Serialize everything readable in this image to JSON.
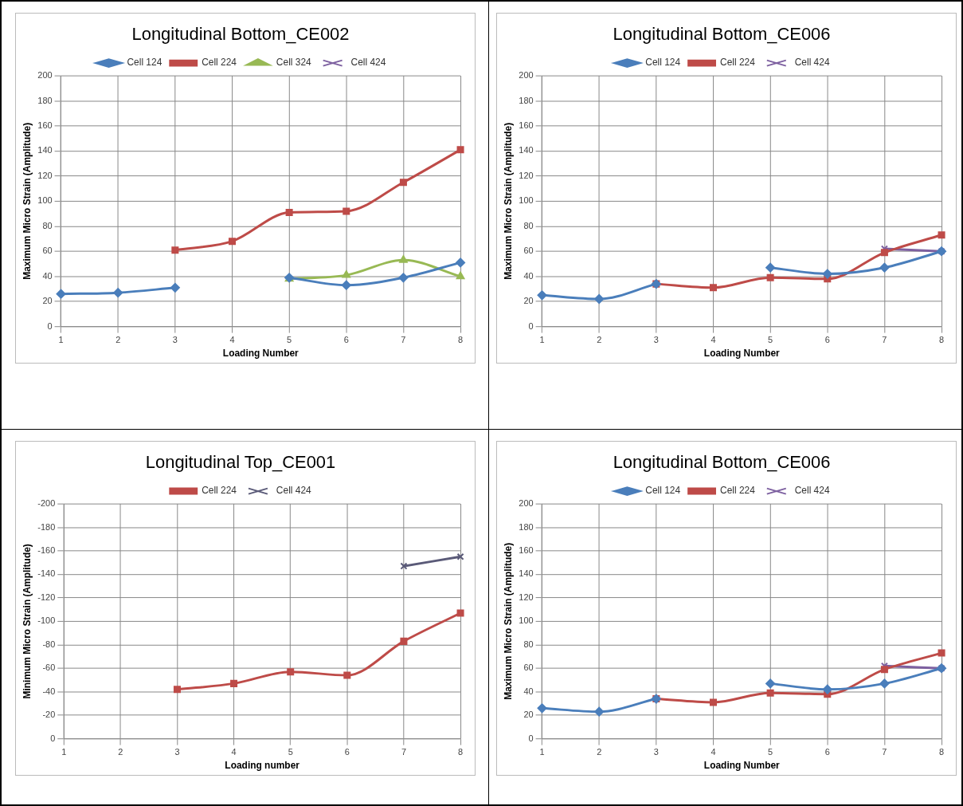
{
  "chart_data": [
    {
      "type": "line",
      "title": "Longitudinal Bottom_CE002",
      "xlabel": "Loading Number",
      "ylabel": "Maximum Micro Strain (Amplitude)",
      "categories": [
        "1",
        "2",
        "3",
        "4",
        "5",
        "6",
        "7",
        "8"
      ],
      "ylim": [
        0,
        200
      ],
      "yticks": [
        0,
        20,
        40,
        60,
        80,
        100,
        120,
        140,
        160,
        180,
        200
      ],
      "grid": true,
      "legend": "top",
      "series": [
        {
          "name": "Cell 124",
          "color": "#4a7ebb",
          "marker": "diamond",
          "values": [
            26,
            27,
            31,
            null,
            39,
            33,
            39,
            51
          ]
        },
        {
          "name": "Cell 224",
          "color": "#be4b48",
          "marker": "square",
          "values": [
            null,
            null,
            61,
            68,
            91,
            92,
            115,
            141
          ]
        },
        {
          "name": "Cell 324",
          "color": "#98b954",
          "marker": "triangle",
          "values": [
            null,
            null,
            null,
            null,
            38,
            41,
            53,
            40
          ]
        },
        {
          "name": "Cell 424",
          "color": "#7d60a0",
          "marker": "cross",
          "values": [
            null,
            null,
            null,
            null,
            null,
            null,
            null,
            null
          ]
        }
      ]
    },
    {
      "type": "line",
      "title": "Longitudinal Bottom_CE006",
      "xlabel": "Loading Number",
      "ylabel": "Maximum Micro Strain (Amplitude)",
      "categories": [
        "1",
        "2",
        "3",
        "4",
        "5",
        "6",
        "7",
        "8"
      ],
      "ylim": [
        0,
        200
      ],
      "yticks": [
        0,
        20,
        40,
        60,
        80,
        100,
        120,
        140,
        160,
        180,
        200
      ],
      "grid": true,
      "legend": "top",
      "series": [
        {
          "name": "Cell 124",
          "color": "#4a7ebb",
          "marker": "diamond",
          "values": [
            25,
            22,
            34,
            null,
            47,
            42,
            47,
            60
          ]
        },
        {
          "name": "Cell 224",
          "color": "#be4b48",
          "marker": "square",
          "values": [
            null,
            null,
            34,
            31,
            39,
            38,
            59,
            73
          ]
        },
        {
          "name": "Cell 424",
          "color": "#7d60a0",
          "marker": "cross",
          "values": [
            null,
            null,
            null,
            null,
            null,
            null,
            62,
            60
          ]
        }
      ]
    },
    {
      "type": "line",
      "title": "Longitudinal Top_CE001",
      "xlabel": "Loading number",
      "ylabel": "Minimum Micro Strain (Amplitude)",
      "categories": [
        "1",
        "2",
        "3",
        "4",
        "5",
        "6",
        "7",
        "8"
      ],
      "ylim": [
        0,
        -200
      ],
      "yticks": [
        0,
        -20,
        -40,
        -60,
        -80,
        -100,
        -120,
        -140,
        -160,
        -180,
        -200
      ],
      "grid": true,
      "legend": "top",
      "series": [
        {
          "name": "Cell 224",
          "color": "#be4b48",
          "marker": "square",
          "values": [
            null,
            null,
            -42,
            -47,
            -57,
            -54,
            -83,
            -107
          ]
        },
        {
          "name": "Cell 424",
          "color": "#5a5a78",
          "marker": "cross",
          "values": [
            null,
            null,
            null,
            null,
            null,
            null,
            -147,
            -155
          ]
        }
      ]
    },
    {
      "type": "line",
      "title": "Longitudinal Bottom_CE006",
      "xlabel": "Loading Number",
      "ylabel": "Maximum Micro Strain (Amplitude)",
      "categories": [
        "1",
        "2",
        "3",
        "4",
        "5",
        "6",
        "7",
        "8"
      ],
      "ylim": [
        0,
        200
      ],
      "yticks": [
        0,
        20,
        40,
        60,
        80,
        100,
        120,
        140,
        160,
        180,
        200
      ],
      "grid": true,
      "legend": "top",
      "series": [
        {
          "name": "Cell 124",
          "color": "#4a7ebb",
          "marker": "diamond",
          "values": [
            26,
            23,
            34,
            null,
            47,
            42,
            47,
            60
          ]
        },
        {
          "name": "Cell 224",
          "color": "#be4b48",
          "marker": "square",
          "values": [
            null,
            null,
            34,
            31,
            39,
            38,
            59,
            73
          ]
        },
        {
          "name": "Cell 424",
          "color": "#7d60a0",
          "marker": "cross",
          "values": [
            null,
            null,
            null,
            null,
            null,
            null,
            62,
            60
          ]
        }
      ]
    }
  ]
}
